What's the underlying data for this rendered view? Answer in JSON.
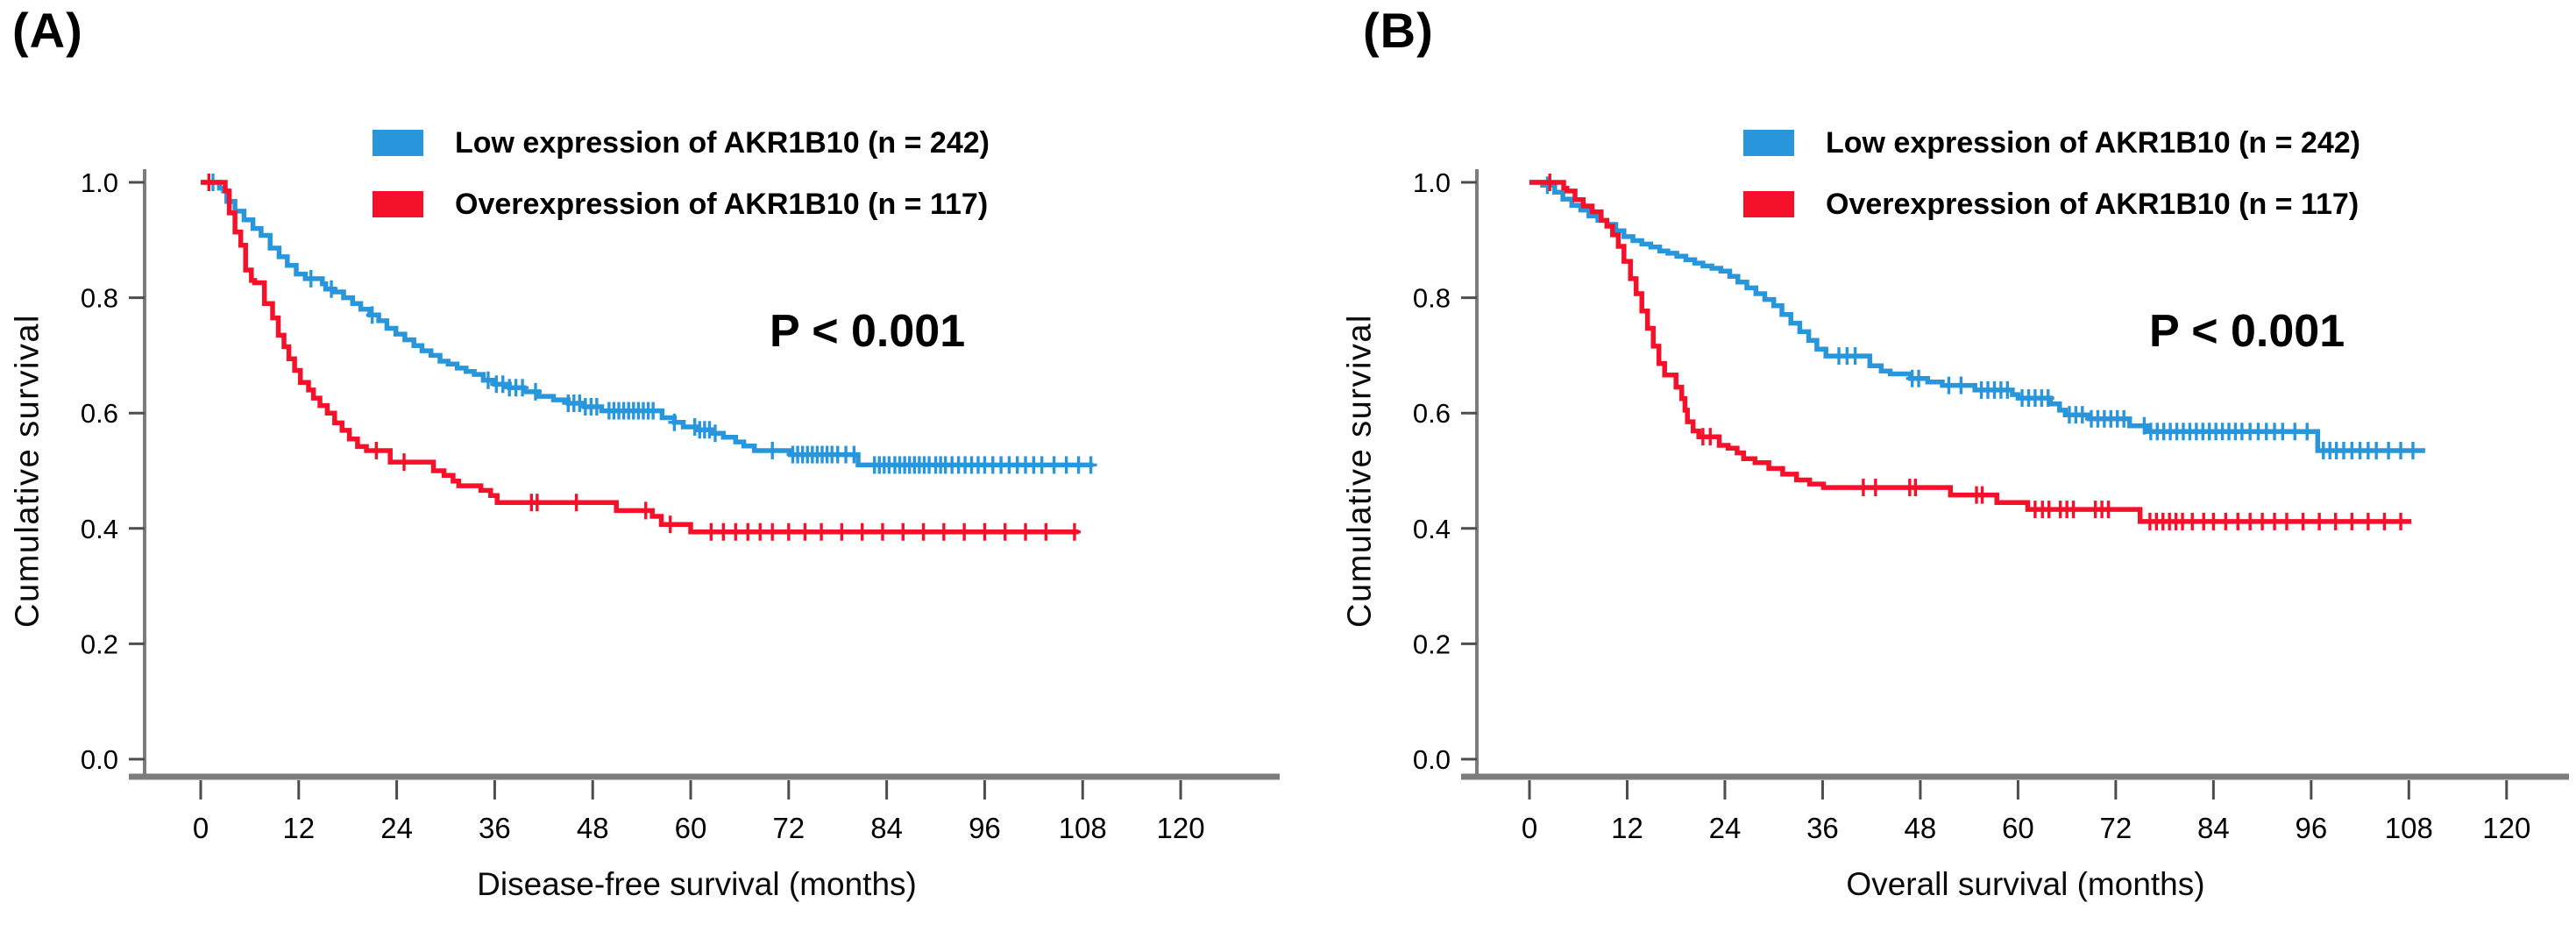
{
  "colors": {
    "low": "#2996DC",
    "over": "#F6112B",
    "axis_line": "#7d7d7d",
    "tick": "#4d4d4d",
    "text": "#000000",
    "background": "#ffffff"
  },
  "chart_data": [
    {
      "type": "line",
      "subtype": "kaplan-meier-step",
      "panel_label": "(A)",
      "xlabel": "Disease-free survival (months)",
      "ylabel": "Cumulative survival",
      "annotation": "P < 0.001",
      "xlim": [
        0,
        120
      ],
      "ylim": [
        0.0,
        1.0
      ],
      "x_ticks": [
        0,
        12,
        24,
        36,
        48,
        60,
        72,
        84,
        96,
        108,
        120
      ],
      "y_ticks": [
        "1.0",
        "0.8",
        "0.6",
        "0.4",
        "0.2",
        "0.0"
      ],
      "grid": false,
      "legend_position": "top-right-inside",
      "series": [
        {
          "name": "Low expression of AKR1B10 (n = 242)",
          "color": "#2996DC",
          "points": [
            [
              0,
              1.0
            ],
            [
              2.3,
              0.99
            ],
            [
              2.8,
              0.985
            ],
            [
              3.2,
              0.967
            ],
            [
              4.2,
              0.95
            ],
            [
              5.3,
              0.935
            ],
            [
              6.4,
              0.92
            ],
            [
              7.4,
              0.908
            ],
            [
              8.5,
              0.886
            ],
            [
              9.6,
              0.871
            ],
            [
              10.6,
              0.856
            ],
            [
              11.7,
              0.841
            ],
            [
              12.8,
              0.833
            ],
            [
              14.9,
              0.824
            ],
            [
              15.3,
              0.815
            ],
            [
              16.4,
              0.81
            ],
            [
              17.5,
              0.8
            ],
            [
              18.6,
              0.79
            ],
            [
              19.6,
              0.78
            ],
            [
              20.7,
              0.77
            ],
            [
              21.8,
              0.76
            ],
            [
              22.8,
              0.747
            ],
            [
              23.9,
              0.737
            ],
            [
              25.0,
              0.727
            ],
            [
              26.1,
              0.717
            ],
            [
              27.1,
              0.708
            ],
            [
              28.2,
              0.7
            ],
            [
              29.3,
              0.69
            ],
            [
              30.3,
              0.685
            ],
            [
              31.4,
              0.678
            ],
            [
              32.5,
              0.672
            ],
            [
              33.5,
              0.667
            ],
            [
              34.6,
              0.657
            ],
            [
              36.0,
              0.65
            ],
            [
              37.8,
              0.644
            ],
            [
              39.6,
              0.637
            ],
            [
              41.4,
              0.629
            ],
            [
              43.2,
              0.623
            ],
            [
              45.0,
              0.617
            ],
            [
              47.0,
              0.611
            ],
            [
              49.1,
              0.604
            ],
            [
              56.5,
              0.592
            ],
            [
              58.0,
              0.584
            ],
            [
              59.1,
              0.576
            ],
            [
              60.9,
              0.571
            ],
            [
              62.6,
              0.565
            ],
            [
              64.0,
              0.558
            ],
            [
              65.5,
              0.55
            ],
            [
              66.5,
              0.543
            ],
            [
              67.8,
              0.535
            ],
            [
              72.2,
              0.528
            ],
            [
              80.5,
              0.51
            ],
            [
              109.3,
              0.51
            ]
          ],
          "censors": [
            1.5,
            13.5,
            16,
            21,
            35.2,
            36.2,
            37,
            37.8,
            38.6,
            39.4,
            41,
            45,
            45.7,
            46.4,
            47.1,
            47.8,
            48.5,
            50,
            50.6,
            51.2,
            51.8,
            52.4,
            53,
            53.6,
            54.2,
            54.8,
            55.4,
            58,
            60.5,
            61.1,
            61.7,
            62.3,
            63,
            70,
            72.5,
            73.1,
            73.7,
            74.3,
            74.9,
            75.5,
            76.1,
            76.7,
            77.3,
            78,
            79,
            80,
            82.5,
            83.1,
            83.7,
            84.3,
            85,
            85.6,
            86.2,
            86.8,
            87.4,
            88,
            88.6,
            89.2,
            90,
            90.6,
            91.2,
            92,
            92.8,
            93.6,
            94.4,
            95.2,
            96,
            97,
            98,
            99,
            100,
            101,
            102,
            103,
            104.5,
            106,
            107.5,
            109
          ]
        },
        {
          "name": "Overexpression of AKR1B10 (n = 117)",
          "color": "#F6112B",
          "points": [
            [
              0,
              1.0
            ],
            [
              2.5,
              1.0
            ],
            [
              3.0,
              0.985
            ],
            [
              3.5,
              0.947
            ],
            [
              4.2,
              0.914
            ],
            [
              4.9,
              0.891
            ],
            [
              5.5,
              0.848
            ],
            [
              6.2,
              0.83
            ],
            [
              6.6,
              0.826
            ],
            [
              7.8,
              0.79
            ],
            [
              8.8,
              0.765
            ],
            [
              9.5,
              0.735
            ],
            [
              10.2,
              0.715
            ],
            [
              10.8,
              0.694
            ],
            [
              11.5,
              0.674
            ],
            [
              12.2,
              0.653
            ],
            [
              13.2,
              0.64
            ],
            [
              13.8,
              0.626
            ],
            [
              14.6,
              0.613
            ],
            [
              15.5,
              0.6
            ],
            [
              16.4,
              0.583
            ],
            [
              17.3,
              0.57
            ],
            [
              18.2,
              0.555
            ],
            [
              19.2,
              0.542
            ],
            [
              20.3,
              0.535
            ],
            [
              23.2,
              0.515
            ],
            [
              28.5,
              0.5
            ],
            [
              29.8,
              0.492
            ],
            [
              30.9,
              0.482
            ],
            [
              31.6,
              0.474
            ],
            [
              34.3,
              0.466
            ],
            [
              35.5,
              0.457
            ],
            [
              36.3,
              0.445
            ],
            [
              50.9,
              0.431
            ],
            [
              55.3,
              0.421
            ],
            [
              56.4,
              0.407
            ],
            [
              60.0,
              0.394
            ],
            [
              107.5,
              0.394
            ]
          ],
          "censors": [
            1,
            21.5,
            24.9,
            40.5,
            41.2,
            46,
            54.5,
            57.5,
            62.5,
            64,
            65.5,
            67,
            68.5,
            70,
            72,
            74,
            76,
            78.5,
            81,
            83.5,
            86,
            88.5,
            91,
            93.5,
            96,
            98.5,
            101,
            103.5,
            107
          ]
        }
      ]
    },
    {
      "type": "line",
      "subtype": "kaplan-meier-step",
      "panel_label": "(B)",
      "xlabel": "Overall survival (months)",
      "ylabel": "Cumulative survival",
      "annotation": "P < 0.001",
      "xlim": [
        0,
        120
      ],
      "ylim": [
        0.0,
        1.0
      ],
      "x_ticks": [
        0,
        12,
        24,
        36,
        48,
        60,
        72,
        84,
        96,
        108,
        120
      ],
      "y_ticks": [
        "1.0",
        "0.8",
        "0.6",
        "0.4",
        "0.2",
        "0.0"
      ],
      "grid": false,
      "legend_position": "top-right-inside",
      "series": [
        {
          "name": "Low expression of AKR1B10 (n = 242)",
          "color": "#2996DC",
          "points": [
            [
              0,
              1.0
            ],
            [
              1.6,
              0.995
            ],
            [
              3.1,
              0.983
            ],
            [
              4.1,
              0.971
            ],
            [
              5.2,
              0.96
            ],
            [
              6.3,
              0.952
            ],
            [
              7.3,
              0.942
            ],
            [
              8.4,
              0.934
            ],
            [
              9.5,
              0.927
            ],
            [
              10.6,
              0.916
            ],
            [
              11.6,
              0.906
            ],
            [
              12.7,
              0.899
            ],
            [
              13.8,
              0.893
            ],
            [
              14.9,
              0.888
            ],
            [
              16.0,
              0.881
            ],
            [
              17.0,
              0.877
            ],
            [
              18.1,
              0.872
            ],
            [
              19.2,
              0.866
            ],
            [
              20.3,
              0.86
            ],
            [
              21.3,
              0.855
            ],
            [
              22.4,
              0.851
            ],
            [
              23.5,
              0.846
            ],
            [
              24.6,
              0.837
            ],
            [
              25.6,
              0.827
            ],
            [
              26.7,
              0.817
            ],
            [
              27.8,
              0.807
            ],
            [
              28.9,
              0.797
            ],
            [
              30.0,
              0.786
            ],
            [
              31.0,
              0.771
            ],
            [
              32.1,
              0.756
            ],
            [
              33.2,
              0.741
            ],
            [
              34.3,
              0.726
            ],
            [
              35.3,
              0.711
            ],
            [
              36.4,
              0.699
            ],
            [
              41.8,
              0.682
            ],
            [
              43.2,
              0.673
            ],
            [
              44.3,
              0.668
            ],
            [
              46.8,
              0.66
            ],
            [
              48.9,
              0.654
            ],
            [
              50.7,
              0.648
            ],
            [
              54.7,
              0.64
            ],
            [
              59.3,
              0.632
            ],
            [
              60.0,
              0.626
            ],
            [
              64.0,
              0.616
            ],
            [
              65.1,
              0.605
            ],
            [
              65.8,
              0.597
            ],
            [
              68.7,
              0.59
            ],
            [
              73.7,
              0.578
            ],
            [
              75.9,
              0.568
            ],
            [
              96.8,
              0.535
            ],
            [
              110,
              0.535
            ]
          ],
          "censors": [
            2.2,
            38,
            39,
            40,
            47,
            47.8,
            51.5,
            53,
            55.5,
            56.3,
            57.1,
            57.9,
            58.7,
            60.5,
            61.3,
            62.1,
            62.9,
            63.7,
            66.3,
            67.1,
            67.9,
            69,
            69.8,
            70.6,
            71.4,
            72.2,
            73,
            75.5,
            76.3,
            77.1,
            77.9,
            78.7,
            79.5,
            80.3,
            81.1,
            81.9,
            82.7,
            83.5,
            84.3,
            85.1,
            85.9,
            86.7,
            87.5,
            88.5,
            89.5,
            90.5,
            91.5,
            92.5,
            94,
            95.5,
            97.5,
            98.3,
            99.1,
            100,
            101,
            102,
            103,
            104,
            105.5,
            107,
            108.5
          ]
        },
        {
          "name": "Overexpression of AKR1B10 (n = 117)",
          "color": "#F6112B",
          "points": [
            [
              0,
              1.0
            ],
            [
              4.2,
              0.99
            ],
            [
              4.6,
              0.985
            ],
            [
              5.6,
              0.97
            ],
            [
              6.6,
              0.959
            ],
            [
              7.7,
              0.949
            ],
            [
              8.8,
              0.934
            ],
            [
              9.5,
              0.924
            ],
            [
              10.2,
              0.909
            ],
            [
              10.9,
              0.889
            ],
            [
              11.6,
              0.863
            ],
            [
              12.4,
              0.833
            ],
            [
              13.1,
              0.807
            ],
            [
              13.8,
              0.777
            ],
            [
              14.5,
              0.747
            ],
            [
              15.2,
              0.716
            ],
            [
              15.9,
              0.686
            ],
            [
              16.6,
              0.666
            ],
            [
              18.0,
              0.645
            ],
            [
              18.7,
              0.625
            ],
            [
              19.1,
              0.605
            ],
            [
              19.4,
              0.585
            ],
            [
              20.1,
              0.569
            ],
            [
              20.8,
              0.559
            ],
            [
              23.3,
              0.544
            ],
            [
              24.4,
              0.539
            ],
            [
              25.5,
              0.531
            ],
            [
              26.3,
              0.521
            ],
            [
              27.7,
              0.514
            ],
            [
              29.4,
              0.504
            ],
            [
              31.1,
              0.494
            ],
            [
              32.8,
              0.484
            ],
            [
              34.4,
              0.477
            ],
            [
              36.1,
              0.471
            ],
            [
              51.7,
              0.458
            ],
            [
              57.4,
              0.445
            ],
            [
              61.2,
              0.433
            ],
            [
              75.0,
              0.412
            ],
            [
              108.3,
              0.412
            ]
          ],
          "censors": [
            2.5,
            21.3,
            22.2,
            41,
            42.5,
            46.7,
            47.4,
            54.9,
            55.6,
            62.1,
            63,
            63.8,
            65.2,
            66,
            66.8,
            69.5,
            70.3,
            71.1,
            76.2,
            77,
            77.8,
            78.6,
            79.4,
            80.2,
            81.4,
            82.8,
            84,
            85.5,
            87,
            88.5,
            90,
            91.5,
            93,
            95,
            97,
            99,
            101,
            103,
            105,
            107
          ]
        }
      ]
    }
  ]
}
